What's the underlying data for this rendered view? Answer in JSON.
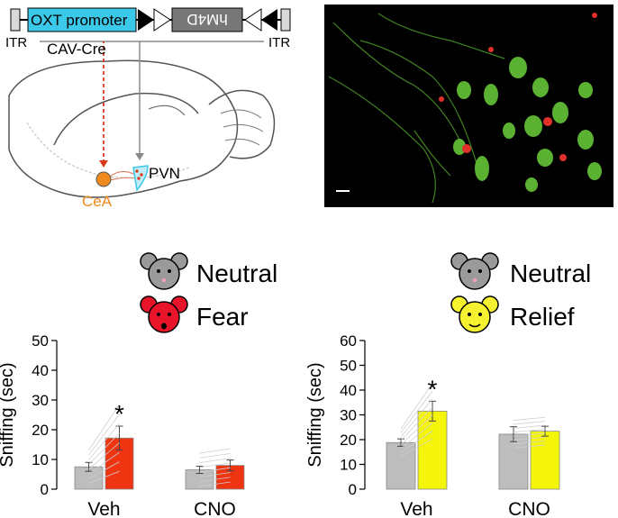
{
  "construct": {
    "itr_left": "ITR",
    "itr_right": "ITR",
    "promoter": "OXT promoter",
    "gene": "hM4D",
    "colors": {
      "promoter_fill": "#3cc8e8",
      "gene_fill": "#777777"
    }
  },
  "brain": {
    "virus_label": "CAV-Cre",
    "cea_label": "CeA",
    "pvn_label": "PVN",
    "colors": {
      "cea": "#f08a1e",
      "pvn": "#3cc8e8",
      "cav_arrow": "#d93a1e",
      "pvn_arrow": "#888888"
    }
  },
  "micrograph": {
    "scale_bar": "present",
    "colors": {
      "background": "#000000",
      "green": "#6bd13a",
      "red": "#e0302a"
    }
  },
  "legend_left": {
    "neutral": "Neutral",
    "stim": "Fear",
    "neutral_icon": "mouse-gray-icon",
    "stim_icon": "mouse-red-icon"
  },
  "legend_right": {
    "neutral": "Neutral",
    "stim": "Relief",
    "neutral_icon": "mouse-gray-icon",
    "stim_icon": "mouse-yellow-icon"
  },
  "chart_data": [
    {
      "type": "bar",
      "ylabel": "Sniffing (sec)",
      "ylim": [
        0,
        50
      ],
      "yticks": [
        0,
        10,
        20,
        30,
        40,
        50
      ],
      "categories": [
        "Veh",
        "CNO"
      ],
      "series": [
        {
          "name": "Neutral",
          "color": "#bdbdbd",
          "values": [
            7.5,
            6.5
          ],
          "errors": [
            1.5,
            1.2
          ]
        },
        {
          "name": "Fear",
          "color": "#ee3411",
          "values": [
            17.2,
            8.0
          ],
          "errors": [
            4.0,
            1.8
          ]
        }
      ],
      "significance": [
        "*",
        ""
      ]
    },
    {
      "type": "bar",
      "ylabel": "Sniffing (sec)",
      "ylim": [
        0,
        60
      ],
      "yticks": [
        0,
        10,
        20,
        30,
        40,
        50,
        60
      ],
      "categories": [
        "Veh",
        "CNO"
      ],
      "series": [
        {
          "name": "Neutral",
          "color": "#bdbdbd",
          "values": [
            18.8,
            22.2
          ],
          "errors": [
            1.5,
            3.0
          ]
        },
        {
          "name": "Relief",
          "color": "#f5f50a",
          "values": [
            31.5,
            23.4
          ],
          "errors": [
            4.0,
            2.0
          ]
        }
      ],
      "significance": [
        "*",
        ""
      ]
    }
  ]
}
